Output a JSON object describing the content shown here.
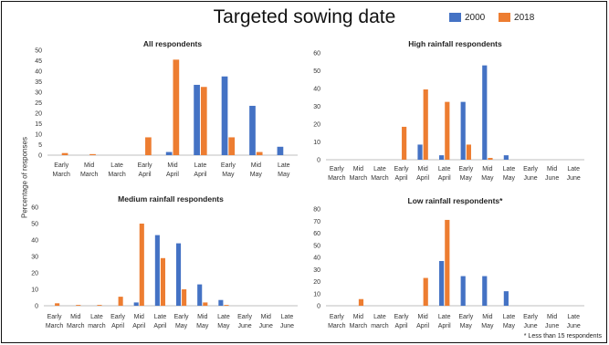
{
  "title": "Targeted sowing date",
  "ylabel": "Percentage of responses",
  "footnote": "* Less than 15 respondents",
  "colors": {
    "2000": "#4472C4",
    "2018": "#ED7D31"
  },
  "legend": [
    "2000",
    "2018"
  ],
  "chart_data": [
    {
      "type": "bar",
      "title": "All respondents",
      "categories": [
        [
          "Early",
          "March"
        ],
        [
          "Mid",
          "March"
        ],
        [
          "Late",
          "March"
        ],
        [
          "Early",
          "April"
        ],
        [
          "Mid",
          "April"
        ],
        [
          "Late",
          "April"
        ],
        [
          "Early",
          "May"
        ],
        [
          "Mid",
          "May"
        ],
        [
          "Late",
          "May"
        ]
      ],
      "ylim": [
        0,
        50
      ],
      "yticks": [
        0,
        5,
        10,
        15,
        20,
        25,
        30,
        35,
        40,
        45,
        50
      ],
      "series": [
        {
          "name": "2000",
          "values": [
            0,
            0,
            0,
            0,
            1.5,
            33.5,
            37.5,
            23.5,
            4
          ]
        },
        {
          "name": "2018",
          "values": [
            1,
            0.5,
            0,
            8.5,
            45.5,
            32.5,
            8.5,
            1.5,
            0
          ]
        }
      ]
    },
    {
      "type": "bar",
      "title": "High rainfall respondents",
      "categories": [
        [
          "Early",
          "March"
        ],
        [
          "Mid",
          "March"
        ],
        [
          "Late",
          "March"
        ],
        [
          "Early",
          "April"
        ],
        [
          "Mid",
          "April"
        ],
        [
          "Late",
          "April"
        ],
        [
          "Early",
          "May"
        ],
        [
          "Mid",
          "May"
        ],
        [
          "Late",
          "May"
        ],
        [
          "Early",
          "June"
        ],
        [
          "Mid",
          "June"
        ],
        [
          "Late",
          "June"
        ]
      ],
      "ylim": [
        0,
        60
      ],
      "yticks": [
        0,
        10,
        20,
        30,
        40,
        50,
        60
      ],
      "series": [
        {
          "name": "2000",
          "values": [
            0,
            0,
            0,
            0,
            8.5,
            2.5,
            32.5,
            53,
            2.5,
            0,
            0,
            0
          ]
        },
        {
          "name": "2018",
          "values": [
            0,
            0,
            0,
            18.5,
            39.5,
            32.5,
            8.5,
            1,
            0,
            0,
            0,
            0
          ]
        }
      ]
    },
    {
      "type": "bar",
      "title": "Medium rainfall respondents",
      "categories": [
        [
          "Early",
          "March"
        ],
        [
          "Mid",
          "March"
        ],
        [
          "Late",
          "march"
        ],
        [
          "Early",
          "April"
        ],
        [
          "Mid",
          "April"
        ],
        [
          "Late",
          "April"
        ],
        [
          "Early",
          "May"
        ],
        [
          "Mid",
          "May"
        ],
        [
          "Late",
          "May"
        ],
        [
          "Early",
          "June"
        ],
        [
          "Mid",
          "June"
        ],
        [
          "Late",
          "June"
        ]
      ],
      "ylim": [
        0,
        60
      ],
      "yticks": [
        0,
        10,
        20,
        30,
        40,
        50,
        60
      ],
      "series": [
        {
          "name": "2000",
          "values": [
            0,
            0,
            0,
            0,
            2,
            43,
            38,
            13,
            3.5,
            0,
            0,
            0
          ]
        },
        {
          "name": "2018",
          "values": [
            1.5,
            0.5,
            0.5,
            5.5,
            50,
            29,
            10,
            2,
            0.5,
            0,
            0,
            0
          ]
        }
      ]
    },
    {
      "type": "bar",
      "title": "Low rainfall respondents*",
      "categories": [
        [
          "Early",
          "March"
        ],
        [
          "Mid",
          "March"
        ],
        [
          "Late",
          "march"
        ],
        [
          "Early",
          "April"
        ],
        [
          "Mid",
          "April"
        ],
        [
          "Late",
          "April"
        ],
        [
          "Early",
          "May"
        ],
        [
          "Mid",
          "May"
        ],
        [
          "Late",
          "May"
        ],
        [
          "Early",
          "June"
        ],
        [
          "Mid",
          "June"
        ],
        [
          "Late",
          "June"
        ]
      ],
      "ylim": [
        0,
        80
      ],
      "yticks": [
        0,
        10,
        20,
        30,
        40,
        50,
        60,
        70,
        80
      ],
      "series": [
        {
          "name": "2000",
          "values": [
            0,
            0,
            0,
            0,
            0,
            37,
            24.5,
            24.5,
            12,
            0,
            0,
            0
          ]
        },
        {
          "name": "2018",
          "values": [
            0,
            5.5,
            0,
            0,
            23,
            71,
            0,
            0,
            0,
            0,
            0,
            0
          ]
        }
      ]
    }
  ]
}
